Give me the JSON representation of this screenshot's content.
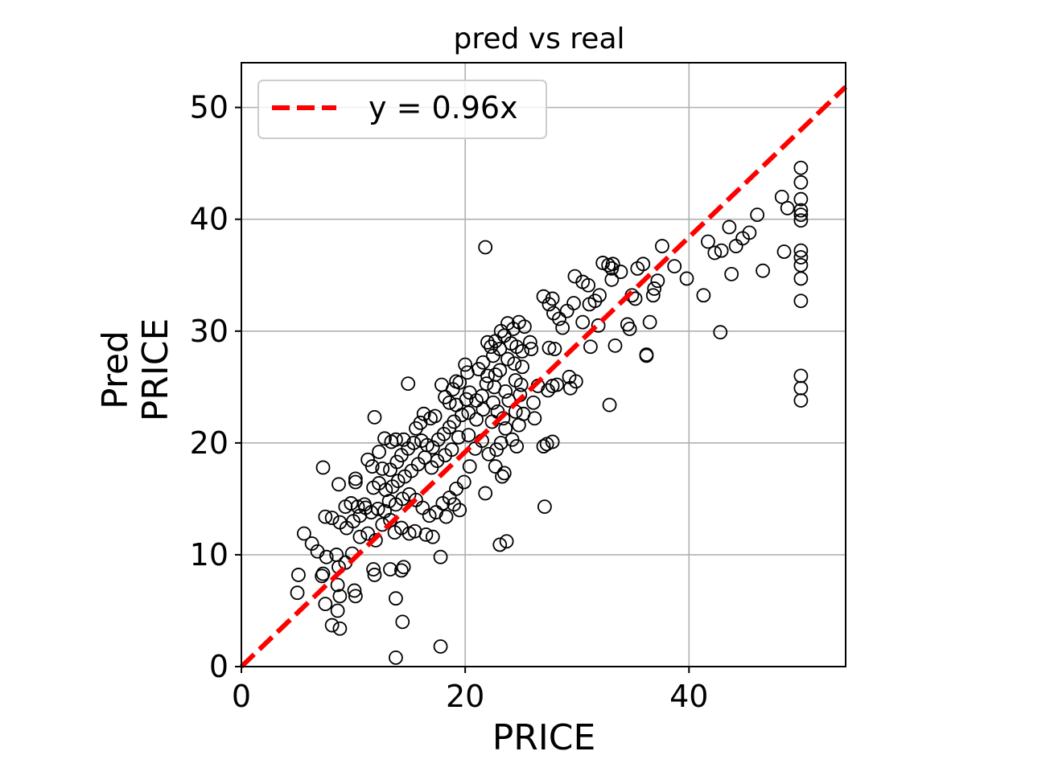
{
  "chart_data": {
    "type": "scatter",
    "title": "pred vs real",
    "xlabel": "PRICE",
    "ylabel_line1": "Pred",
    "ylabel_line2": "PRICE",
    "xlim": [
      0,
      54
    ],
    "ylim": [
      0,
      54
    ],
    "xticks": [
      0,
      20,
      40
    ],
    "yticks": [
      0,
      10,
      20,
      30,
      40,
      50
    ],
    "grid": true,
    "legend_position": "top-left",
    "reference_line": {
      "label": "y = 0.96x",
      "slope": 0.96,
      "color": "#ff0000",
      "style": "dashed"
    },
    "marker_color": "#000000",
    "points": [
      [
        50,
        44.6
      ],
      [
        50,
        43.3
      ],
      [
        50,
        41.8
      ],
      [
        50,
        40.8
      ],
      [
        50,
        40.4
      ],
      [
        50,
        39.9
      ],
      [
        50,
        37.2
      ],
      [
        50,
        36.6
      ],
      [
        50,
        35.9
      ],
      [
        50,
        34.7
      ],
      [
        50,
        32.7
      ],
      [
        50,
        26.0
      ],
      [
        50,
        24.9
      ],
      [
        50,
        23.8
      ],
      [
        48.3,
        42.0
      ],
      [
        48.8,
        41.0
      ],
      [
        48.5,
        37.1
      ],
      [
        46.6,
        35.4
      ],
      [
        46.1,
        40.4
      ],
      [
        45.4,
        38.8
      ],
      [
        44.8,
        38.3
      ],
      [
        44.2,
        37.6
      ],
      [
        43.8,
        35.1
      ],
      [
        43.6,
        39.3
      ],
      [
        42.9,
        37.2
      ],
      [
        42.3,
        37.0
      ],
      [
        41.7,
        38.0
      ],
      [
        42.8,
        29.9
      ],
      [
        41.3,
        33.2
      ],
      [
        39.8,
        34.7
      ],
      [
        38.7,
        35.8
      ],
      [
        37.6,
        37.6
      ],
      [
        37.2,
        34.5
      ],
      [
        36.8,
        33.2
      ],
      [
        36.5,
        30.8
      ],
      [
        36.9,
        33.8
      ],
      [
        35.9,
        36.0
      ],
      [
        35.4,
        35.6
      ],
      [
        34.9,
        33.2
      ],
      [
        35.2,
        32.9
      ],
      [
        34.7,
        30.2
      ],
      [
        34.5,
        30.6
      ],
      [
        33.9,
        35.3
      ],
      [
        33.2,
        36.0
      ],
      [
        33.1,
        35.6
      ],
      [
        32.8,
        35.9
      ],
      [
        33.1,
        34.6
      ],
      [
        32.3,
        36.1
      ],
      [
        32.0,
        33.2
      ],
      [
        31.6,
        32.7
      ],
      [
        31.1,
        32.4
      ],
      [
        31.0,
        34.1
      ],
      [
        30.5,
        34.4
      ],
      [
        29.8,
        34.9
      ],
      [
        29.7,
        32.5
      ],
      [
        29.1,
        31.8
      ],
      [
        28.7,
        30.3
      ],
      [
        28.4,
        31.1
      ],
      [
        27.9,
        31.6
      ],
      [
        27.5,
        32.4
      ],
      [
        27.8,
        32.9
      ],
      [
        27.0,
        33.1
      ],
      [
        27.5,
        28.5
      ],
      [
        28.0,
        28.4
      ],
      [
        33.4,
        28.7
      ],
      [
        32.9,
        23.4
      ],
      [
        31.9,
        30.5
      ],
      [
        31.2,
        28.6
      ],
      [
        30.5,
        30.8
      ],
      [
        36.2,
        27.9
      ],
      [
        36.2,
        27.8
      ],
      [
        29.9,
        25.5
      ],
      [
        29.4,
        24.9
      ],
      [
        29.3,
        25.9
      ],
      [
        28.2,
        25.2
      ],
      [
        27.8,
        25.1
      ],
      [
        27.4,
        24.7
      ],
      [
        27.8,
        20.1
      ],
      [
        27.3,
        19.9
      ],
      [
        27.0,
        19.7
      ],
      [
        26.1,
        23.6
      ],
      [
        26.2,
        22.2
      ],
      [
        25.2,
        22.6
      ],
      [
        26.5,
        25.1
      ],
      [
        27.1,
        14.3
      ],
      [
        23.7,
        11.2
      ],
      [
        23.1,
        10.9
      ],
      [
        21.8,
        37.5
      ],
      [
        25.8,
        29.0
      ],
      [
        25.9,
        28.4
      ],
      [
        25.3,
        30.4
      ],
      [
        24.8,
        30.8
      ],
      [
        24.3,
        30.2
      ],
      [
        23.8,
        30.7
      ],
      [
        23.2,
        30.0
      ],
      [
        23.5,
        29.6
      ],
      [
        24.1,
        28.9
      ],
      [
        24.6,
        28.6
      ],
      [
        25.1,
        28.2
      ],
      [
        23.1,
        28.4
      ],
      [
        22.7,
        29.1
      ],
      [
        22.3,
        28.6
      ],
      [
        22.0,
        29.0
      ],
      [
        22.5,
        27.8
      ],
      [
        23.8,
        27.5
      ],
      [
        24.4,
        27.1
      ],
      [
        25.1,
        26.8
      ],
      [
        23.1,
        26.5
      ],
      [
        22.7,
        26.1
      ],
      [
        22.0,
        26.0
      ],
      [
        21.6,
        27.2
      ],
      [
        21.2,
        26.6
      ],
      [
        21.9,
        25.3
      ],
      [
        22.6,
        25.0
      ],
      [
        23.6,
        24.6
      ],
      [
        24.5,
        25.6
      ],
      [
        25.0,
        25.2
      ],
      [
        24.9,
        24.3
      ],
      [
        23.9,
        23.8
      ],
      [
        22.5,
        23.6
      ],
      [
        21.5,
        24.2
      ],
      [
        21.0,
        23.8
      ],
      [
        20.4,
        24.5
      ],
      [
        20.1,
        23.9
      ],
      [
        21.6,
        23.0
      ],
      [
        22.9,
        22.8
      ],
      [
        23.4,
        22.2
      ],
      [
        24.5,
        22.8
      ],
      [
        24.8,
        21.6
      ],
      [
        23.6,
        21.3
      ],
      [
        22.4,
        21.9
      ],
      [
        21.0,
        22.1
      ],
      [
        20.3,
        22.7
      ],
      [
        19.7,
        22.5
      ],
      [
        19.2,
        23.4
      ],
      [
        18.6,
        23.6
      ],
      [
        18.2,
        24.1
      ],
      [
        18.9,
        24.8
      ],
      [
        19.5,
        25.4
      ],
      [
        20.2,
        26.3
      ],
      [
        20.0,
        27.0
      ],
      [
        19.2,
        25.5
      ],
      [
        17.9,
        25.2
      ],
      [
        17.3,
        22.4
      ],
      [
        16.9,
        22.2
      ],
      [
        16.3,
        22.6
      ],
      [
        16.0,
        21.8
      ],
      [
        15.6,
        21.3
      ],
      [
        14.9,
        25.3
      ],
      [
        14.5,
        20.3
      ],
      [
        13.8,
        20.3
      ],
      [
        13.4,
        20.1
      ],
      [
        12.8,
        20.4
      ],
      [
        11.9,
        22.3
      ],
      [
        12.3,
        19.2
      ],
      [
        11.3,
        18.5
      ],
      [
        11.7,
        17.9
      ],
      [
        12.6,
        17.7
      ],
      [
        13.3,
        17.6
      ],
      [
        13.9,
        18.3
      ],
      [
        14.3,
        18.9
      ],
      [
        14.9,
        19.5
      ],
      [
        15.4,
        20.0
      ],
      [
        16.1,
        20.2
      ],
      [
        16.6,
        19.8
      ],
      [
        17.1,
        19.6
      ],
      [
        17.6,
        20.3
      ],
      [
        18.1,
        20.8
      ],
      [
        18.6,
        21.4
      ],
      [
        19.0,
        21.9
      ],
      [
        19.4,
        20.5
      ],
      [
        18.8,
        19.4
      ],
      [
        18.2,
        18.9
      ],
      [
        17.5,
        18.4
      ],
      [
        17.0,
        17.8
      ],
      [
        16.4,
        18.7
      ],
      [
        15.8,
        18.1
      ],
      [
        15.2,
        17.5
      ],
      [
        14.6,
        17.0
      ],
      [
        14.0,
        16.6
      ],
      [
        13.5,
        16.1
      ],
      [
        12.9,
        15.8
      ],
      [
        12.3,
        16.4
      ],
      [
        11.8,
        16.0
      ],
      [
        11.0,
        14.5
      ],
      [
        10.4,
        14.3
      ],
      [
        9.8,
        14.6
      ],
      [
        9.3,
        14.3
      ],
      [
        10.2,
        16.5
      ],
      [
        10.2,
        16.8
      ],
      [
        8.7,
        16.3
      ],
      [
        7.3,
        17.8
      ],
      [
        20.3,
        20.7
      ],
      [
        20.9,
        19.5
      ],
      [
        21.5,
        20.2
      ],
      [
        22.1,
        19.0
      ],
      [
        22.8,
        19.4
      ],
      [
        23.2,
        20.0
      ],
      [
        24.2,
        20.3
      ],
      [
        24.6,
        19.7
      ],
      [
        23.5,
        17.3
      ],
      [
        22.7,
        17.9
      ],
      [
        23.3,
        17.0
      ],
      [
        21.8,
        15.5
      ],
      [
        20.4,
        17.9
      ],
      [
        19.9,
        16.5
      ],
      [
        19.2,
        15.9
      ],
      [
        18.6,
        15.1
      ],
      [
        18.0,
        14.6
      ],
      [
        17.4,
        13.8
      ],
      [
        16.8,
        13.5
      ],
      [
        16.2,
        14.2
      ],
      [
        15.6,
        14.9
      ],
      [
        15.0,
        15.4
      ],
      [
        14.4,
        15.0
      ],
      [
        13.8,
        14.5
      ],
      [
        13.2,
        14.8
      ],
      [
        12.8,
        13.9
      ],
      [
        12.2,
        14.1
      ],
      [
        11.6,
        13.8
      ],
      [
        11.1,
        14.2
      ],
      [
        10.6,
        13.5
      ],
      [
        10.0,
        13.0
      ],
      [
        9.4,
        12.4
      ],
      [
        8.8,
        12.9
      ],
      [
        8.1,
        13.3
      ],
      [
        7.5,
        13.4
      ],
      [
        19.5,
        14.0
      ],
      [
        19.0,
        14.5
      ],
      [
        18.3,
        13.4
      ],
      [
        17.1,
        11.6
      ],
      [
        16.5,
        11.8
      ],
      [
        15.5,
        12.1
      ],
      [
        15.0,
        11.9
      ],
      [
        14.3,
        12.4
      ],
      [
        13.7,
        12.0
      ],
      [
        13.3,
        13.1
      ],
      [
        12.6,
        12.7
      ],
      [
        12.0,
        11.3
      ],
      [
        11.3,
        11.9
      ],
      [
        10.6,
        11.6
      ],
      [
        9.9,
        10.1
      ],
      [
        9.3,
        9.3
      ],
      [
        8.5,
        10.0
      ],
      [
        7.6,
        9.8
      ],
      [
        6.8,
        10.3
      ],
      [
        6.3,
        11.0
      ],
      [
        5.6,
        11.9
      ],
      [
        17.8,
        9.8
      ],
      [
        14.5,
        8.9
      ],
      [
        14.3,
        8.6
      ],
      [
        13.3,
        8.7
      ],
      [
        11.8,
        8.7
      ],
      [
        11.9,
        8.2
      ],
      [
        8.7,
        8.9
      ],
      [
        7.3,
        8.3
      ],
      [
        7.2,
        8.1
      ],
      [
        5.1,
        8.2
      ],
      [
        8.6,
        7.3
      ],
      [
        10.1,
        6.8
      ],
      [
        10.2,
        6.3
      ],
      [
        8.8,
        6.3
      ],
      [
        5.0,
        6.6
      ],
      [
        7.5,
        5.6
      ],
      [
        8.6,
        5.0
      ],
      [
        13.8,
        6.1
      ],
      [
        14.4,
        4.0
      ],
      [
        8.1,
        3.7
      ],
      [
        8.8,
        3.4
      ],
      [
        17.8,
        1.8
      ],
      [
        13.8,
        0.8
      ]
    ]
  }
}
